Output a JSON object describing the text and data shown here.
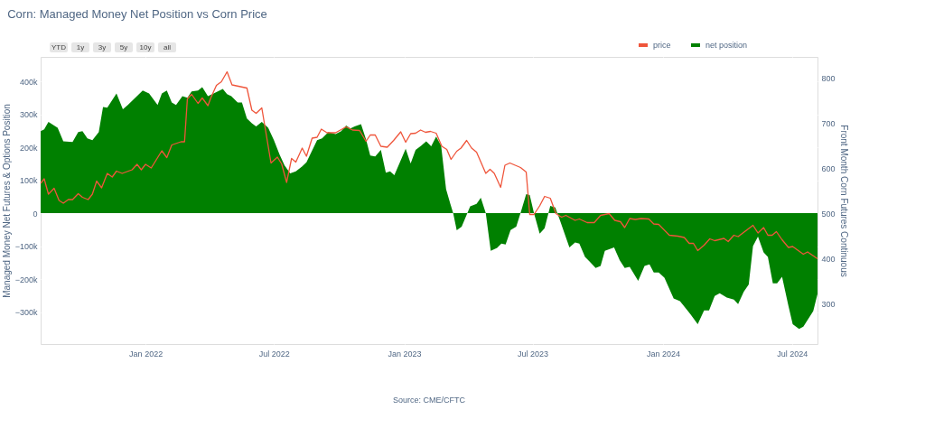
{
  "chart_data": {
    "type": "area",
    "title": "Corn: Managed Money Net Position vs Corn Price",
    "ylabel": "Managed Money Net Futures & Options Position",
    "y2label": "Front Month Corn Futures Continuous",
    "annotations": [
      "YTD",
      "1y",
      "3y",
      "5y",
      "10y",
      "all",
      "Source: CME/CFTC"
    ],
    "legend": "top right",
    "grid": true,
    "xlim": [
      "2021-08-06",
      "2024-08-06"
    ],
    "xticks": [
      {
        "value": "2022-01-01",
        "label": "Jan 2022"
      },
      {
        "value": "2022-07-01",
        "label": "Jul 2022"
      },
      {
        "value": "2023-01-01",
        "label": "Jan 2023"
      },
      {
        "value": "2023-07-01",
        "label": "Jul 2023"
      },
      {
        "value": "2024-01-01",
        "label": "Jan 2024"
      },
      {
        "value": "2024-07-01",
        "label": "Jul 2024"
      }
    ],
    "ylim": [
      -397000,
      474000
    ],
    "yticks": [
      {
        "value": -300000,
        "label": "−300k"
      },
      {
        "value": -200000,
        "label": "−200k"
      },
      {
        "value": -100000,
        "label": "−100k"
      },
      0,
      {
        "value": 100000,
        "label": "100k"
      },
      {
        "value": 200000,
        "label": "200k"
      },
      {
        "value": 300000,
        "label": "300k"
      },
      {
        "value": 400000,
        "label": "400k"
      }
    ],
    "y2lim": [
      210,
      846
    ],
    "y2ticks": [
      300,
      400,
      500,
      600,
      700,
      800
    ],
    "series": [
      {
        "name": "price",
        "type": "line",
        "axis": "y2",
        "color": "#ef553b",
        "x": [
          "2021-08-06",
          "2021-08-11",
          "2021-08-17",
          "2021-08-25",
          "2021-09-01",
          "2021-09-07",
          "2021-09-14",
          "2021-09-20",
          "2021-09-28",
          "2021-10-04",
          "2021-10-12",
          "2021-10-18",
          "2021-10-24",
          "2021-10-31",
          "2021-11-08",
          "2021-11-15",
          "2021-11-21",
          "2021-11-29",
          "2021-12-13",
          "2021-12-20",
          "2021-12-26",
          "2022-01-01",
          "2022-01-09",
          "2022-01-24",
          "2022-01-31",
          "2022-02-07",
          "2022-02-20",
          "2022-02-25",
          "2022-03-01",
          "2022-03-07",
          "2022-03-16",
          "2022-03-22",
          "2022-03-30",
          "2022-04-03",
          "2022-04-11",
          "2022-04-18",
          "2022-04-26",
          "2022-05-03",
          "2022-05-12",
          "2022-05-24",
          "2022-05-31",
          "2022-06-06",
          "2022-06-14",
          "2022-06-27",
          "2022-07-06",
          "2022-07-12",
          "2022-07-19",
          "2022-07-26",
          "2022-08-01",
          "2022-08-10",
          "2022-08-16",
          "2022-08-24",
          "2022-08-31",
          "2022-09-06",
          "2022-09-14",
          "2022-09-26",
          "2022-10-11",
          "2022-10-20",
          "2022-10-30",
          "2022-11-08",
          "2022-11-14",
          "2022-11-21",
          "2022-11-29",
          "2022-12-08",
          "2022-12-17",
          "2022-12-27",
          "2023-01-03",
          "2023-01-10",
          "2023-01-17",
          "2023-01-24",
          "2023-01-31",
          "2023-02-07",
          "2023-02-15",
          "2023-02-23",
          "2023-03-02",
          "2023-03-08",
          "2023-03-16",
          "2023-03-22",
          "2023-03-30",
          "2023-04-06",
          "2023-04-13",
          "2023-04-26",
          "2023-05-02",
          "2023-05-08",
          "2023-05-17",
          "2023-05-23",
          "2023-05-30",
          "2023-06-14",
          "2023-06-22",
          "2023-06-27",
          "2023-07-03",
          "2023-07-11",
          "2023-07-18",
          "2023-07-26",
          "2023-08-03",
          "2023-08-11",
          "2023-08-17",
          "2023-08-30",
          "2023-09-05",
          "2023-09-16",
          "2023-09-26",
          "2023-10-05",
          "2023-10-17",
          "2023-10-25",
          "2023-11-02",
          "2023-11-08",
          "2023-11-15",
          "2023-11-23",
          "2023-12-01",
          "2023-12-12",
          "2023-12-19",
          "2023-12-26",
          "2024-01-10",
          "2024-01-22",
          "2024-01-31",
          "2024-02-07",
          "2024-02-13",
          "2024-02-19",
          "2024-02-28",
          "2024-03-07",
          "2024-03-14",
          "2024-03-27",
          "2024-04-02",
          "2024-04-10",
          "2024-04-16",
          "2024-05-07",
          "2024-05-14",
          "2024-05-22",
          "2024-05-28",
          "2024-06-03",
          "2024-06-09",
          "2024-06-17",
          "2024-06-26",
          "2024-07-02",
          "2024-07-17",
          "2024-07-23",
          "2024-08-06"
        ],
        "values": [
          566,
          576,
          542,
          555,
          528,
          522,
          530,
          530,
          543,
          535,
          530,
          542,
          571,
          556,
          588,
          580,
          593,
          588,
          596,
          608,
          596,
          608,
          600,
          638,
          623,
          651,
          658,
          658,
          753,
          763,
          743,
          755,
          738,
          755,
          783,
          791,
          813,
          784,
          781,
          777,
          728,
          721,
          733,
          611,
          624,
          609,
          568,
          621,
          613,
          644,
          626,
          666,
          668,
          686,
          678,
          678,
          691,
          684,
          683,
          659,
          673,
          673,
          648,
          646,
          661,
          680,
          657,
          676,
          677,
          684,
          679,
          681,
          677,
          648,
          641,
          619,
          637,
          644,
          661,
          644,
          635,
          588,
          597,
          588,
          557,
          606,
          611,
          601,
          591,
          497,
          497,
          516,
          537,
          533,
          499,
          491,
          495,
          484,
          487,
          479,
          479,
          495,
          499,
          484,
          481,
          468,
          488,
          486,
          488,
          487,
          476,
          475,
          451,
          449,
          446,
          433,
          433,
          417,
          429,
          443,
          439,
          444,
          437,
          451,
          448,
          473,
          456,
          468,
          451,
          451,
          459,
          441,
          424,
          426,
          409,
          414,
          399
        ]
      },
      {
        "name": "net position",
        "color": "#008000",
        "x": [
          "2021-08-06",
          "2021-08-11",
          "2021-08-17",
          "2021-08-30",
          "2021-09-07",
          "2021-09-20",
          "2021-09-28",
          "2021-10-04",
          "2021-10-11",
          "2021-10-18",
          "2021-10-27",
          "2021-11-02",
          "2021-11-08",
          "2021-11-21",
          "2021-11-30",
          "2021-12-07",
          "2021-12-28",
          "2022-01-06",
          "2022-01-18",
          "2022-01-24",
          "2022-01-31",
          "2022-02-07",
          "2022-02-13",
          "2022-02-22",
          "2022-03-01",
          "2022-03-07",
          "2022-03-16",
          "2022-03-22",
          "2022-03-30",
          "2022-04-07",
          "2022-04-20",
          "2022-04-26",
          "2022-05-02",
          "2022-05-11",
          "2022-05-17",
          "2022-05-24",
          "2022-05-31",
          "2022-06-06",
          "2022-06-14",
          "2022-06-23",
          "2022-07-01",
          "2022-07-09",
          "2022-07-16",
          "2022-07-24",
          "2022-08-01",
          "2022-08-10",
          "2022-08-16",
          "2022-08-31",
          "2022-09-07",
          "2022-09-16",
          "2022-09-26",
          "2022-10-04",
          "2022-10-11",
          "2022-10-17",
          "2022-10-23",
          "2022-11-01",
          "2022-11-08",
          "2022-11-14",
          "2022-11-21",
          "2022-11-29",
          "2022-12-06",
          "2022-12-12",
          "2022-12-18",
          "2023-01-03",
          "2023-01-10",
          "2023-01-17",
          "2023-01-25",
          "2023-02-01",
          "2023-02-08",
          "2023-02-15",
          "2023-02-22",
          "2023-03-01",
          "2023-03-07",
          "2023-03-11",
          "2023-03-16",
          "2023-03-23",
          "2023-04-04",
          "2023-04-13",
          "2023-04-19",
          "2023-04-26",
          "2023-05-03",
          "2023-05-12",
          "2023-05-18",
          "2023-05-24",
          "2023-05-31",
          "2023-06-08",
          "2023-06-14",
          "2023-06-22",
          "2023-06-27",
          "2023-07-03",
          "2023-07-11",
          "2023-07-18",
          "2023-07-26",
          "2023-08-02",
          "2023-08-09",
          "2023-08-22",
          "2023-08-30",
          "2023-09-05",
          "2023-09-13",
          "2023-09-19",
          "2023-09-28",
          "2023-10-05",
          "2023-10-11",
          "2023-10-24",
          "2023-11-01",
          "2023-11-08",
          "2023-11-15",
          "2023-11-27",
          "2023-12-06",
          "2023-12-13",
          "2023-12-19",
          "2023-12-26",
          "2024-01-03",
          "2024-01-16",
          "2024-01-25",
          "2024-02-09",
          "2024-02-19",
          "2024-02-28",
          "2024-03-06",
          "2024-03-14",
          "2024-03-21",
          "2024-03-31",
          "2024-04-10",
          "2024-04-16",
          "2024-04-24",
          "2024-05-01",
          "2024-05-07",
          "2024-05-14",
          "2024-05-22",
          "2024-05-28",
          "2024-06-04",
          "2024-06-10",
          "2024-06-17",
          "2024-06-26",
          "2024-07-02",
          "2024-07-11",
          "2024-07-17",
          "2024-07-31",
          "2024-08-06"
        ],
        "values": [
          249000,
          254000,
          277000,
          259000,
          218000,
          216000,
          246000,
          249000,
          227000,
          221000,
          246000,
          322000,
          320000,
          363000,
          315000,
          328000,
          372000,
          363000,
          328000,
          363000,
          372000,
          336000,
          328000,
          355000,
          350000,
          369000,
          372000,
          382000,
          355000,
          363000,
          377000,
          361000,
          355000,
          336000,
          336000,
          287000,
          273000,
          263000,
          277000,
          259000,
          222000,
          178000,
          145000,
          121000,
          127000,
          142000,
          154000,
          221000,
          227000,
          246000,
          240000,
          249000,
          266000,
          257000,
          263000,
          270000,
          224000,
          175000,
          172000,
          192000,
          123000,
          127000,
          115000,
          195000,
          151000,
          192000,
          205000,
          218000,
          203000,
          232000,
          205000,
          73000,
          28000,
          0,
          -52000,
          -41000,
          21000,
          28000,
          47000,
          0,
          -114000,
          -105000,
          -92000,
          -95000,
          -51000,
          -41000,
          0,
          58000,
          55000,
          0,
          -62000,
          -46000,
          22000,
          17000,
          -24000,
          -104000,
          -89000,
          -92000,
          -133000,
          -146000,
          -166000,
          -160000,
          -114000,
          -104000,
          -143000,
          -166000,
          -163000,
          -205000,
          -160000,
          -155000,
          -180000,
          -180000,
          -196000,
          -259000,
          -267000,
          -307000,
          -337000,
          -295000,
          -295000,
          -251000,
          -243000,
          -256000,
          -262000,
          -276000,
          -238000,
          -216000,
          -100000,
          -71000,
          -119000,
          -133000,
          -213000,
          -213000,
          -193000,
          -281000,
          -337000,
          -351000,
          -344000,
          -297000,
          -245000
        ]
      }
    ]
  }
}
